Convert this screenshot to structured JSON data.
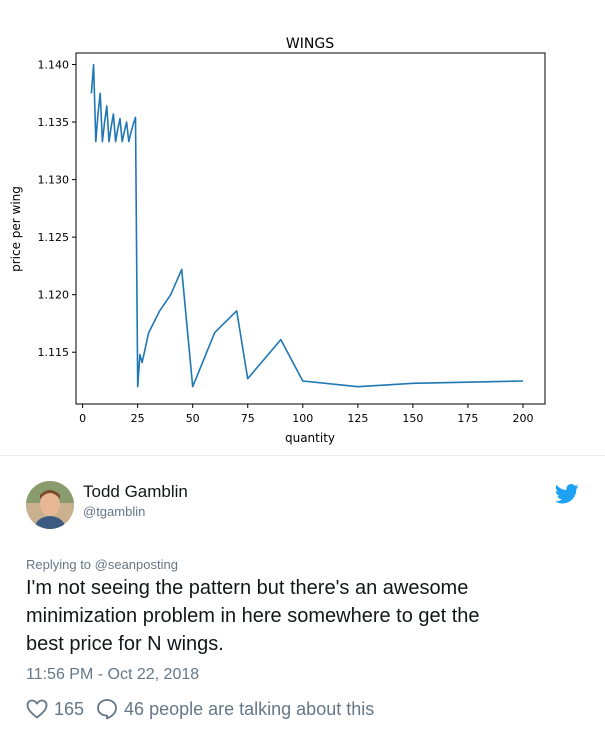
{
  "chart_data": {
    "type": "line",
    "title": "WINGS",
    "xlabel": "quantity",
    "ylabel": "price per wing",
    "xlim": [
      -3,
      210
    ],
    "ylim": [
      1.1105,
      1.141
    ],
    "xticks": [
      0,
      25,
      50,
      75,
      100,
      125,
      150,
      175,
      200
    ],
    "xtick_labels": [
      "0",
      "25",
      "50",
      "75",
      "100",
      "125",
      "150",
      "175",
      "200"
    ],
    "yticks": [
      1.115,
      1.12,
      1.125,
      1.13,
      1.135,
      1.14
    ],
    "ytick_labels": [
      "1.115",
      "1.120",
      "1.125",
      "1.130",
      "1.135",
      "1.140"
    ],
    "grid": false,
    "series": [
      {
        "color": "#1f77b4",
        "points": [
          [
            4,
            1.1375
          ],
          [
            5,
            1.14
          ],
          [
            6,
            1.1333
          ],
          [
            7,
            1.1357
          ],
          [
            8,
            1.1375
          ],
          [
            9,
            1.1333
          ],
          [
            10,
            1.135
          ],
          [
            11,
            1.1364
          ],
          [
            12,
            1.1333
          ],
          [
            13,
            1.1346
          ],
          [
            14,
            1.1357
          ],
          [
            15,
            1.1333
          ],
          [
            16,
            1.1344
          ],
          [
            17,
            1.1353
          ],
          [
            18,
            1.1333
          ],
          [
            19,
            1.1342
          ],
          [
            20,
            1.135
          ],
          [
            21,
            1.1333
          ],
          [
            22,
            1.1341
          ],
          [
            23,
            1.1348
          ],
          [
            24,
            1.1354
          ],
          [
            25,
            1.112
          ],
          [
            26,
            1.1148
          ],
          [
            27,
            1.1141
          ],
          [
            30,
            1.1167
          ],
          [
            35,
            1.1186
          ],
          [
            40,
            1.12
          ],
          [
            45,
            1.1222
          ],
          [
            50,
            1.112
          ],
          [
            60,
            1.1167
          ],
          [
            70,
            1.1186
          ],
          [
            75,
            1.1127
          ],
          [
            90,
            1.1161
          ],
          [
            100,
            1.1125
          ],
          [
            125,
            1.112
          ],
          [
            150,
            1.1123
          ],
          [
            200,
            1.1125
          ]
        ]
      }
    ]
  },
  "tweet": {
    "author_name": "Todd Gamblin",
    "author_handle": "@tgamblin",
    "replying_to": "Replying to @seanposting",
    "text": "I'm not seeing the pattern but there's an awesome\nminimization problem in here somewhere to get the\nbest price for N wings.",
    "timestamp": "11:56 PM - Oct 22, 2018",
    "likes": "165",
    "replies_text": "46 people are talking about this",
    "accent_color": "#1da1f2",
    "icons": {
      "platform": "twitter-bird-icon",
      "like": "heart-icon",
      "reply": "speech-bubble-icon"
    }
  }
}
